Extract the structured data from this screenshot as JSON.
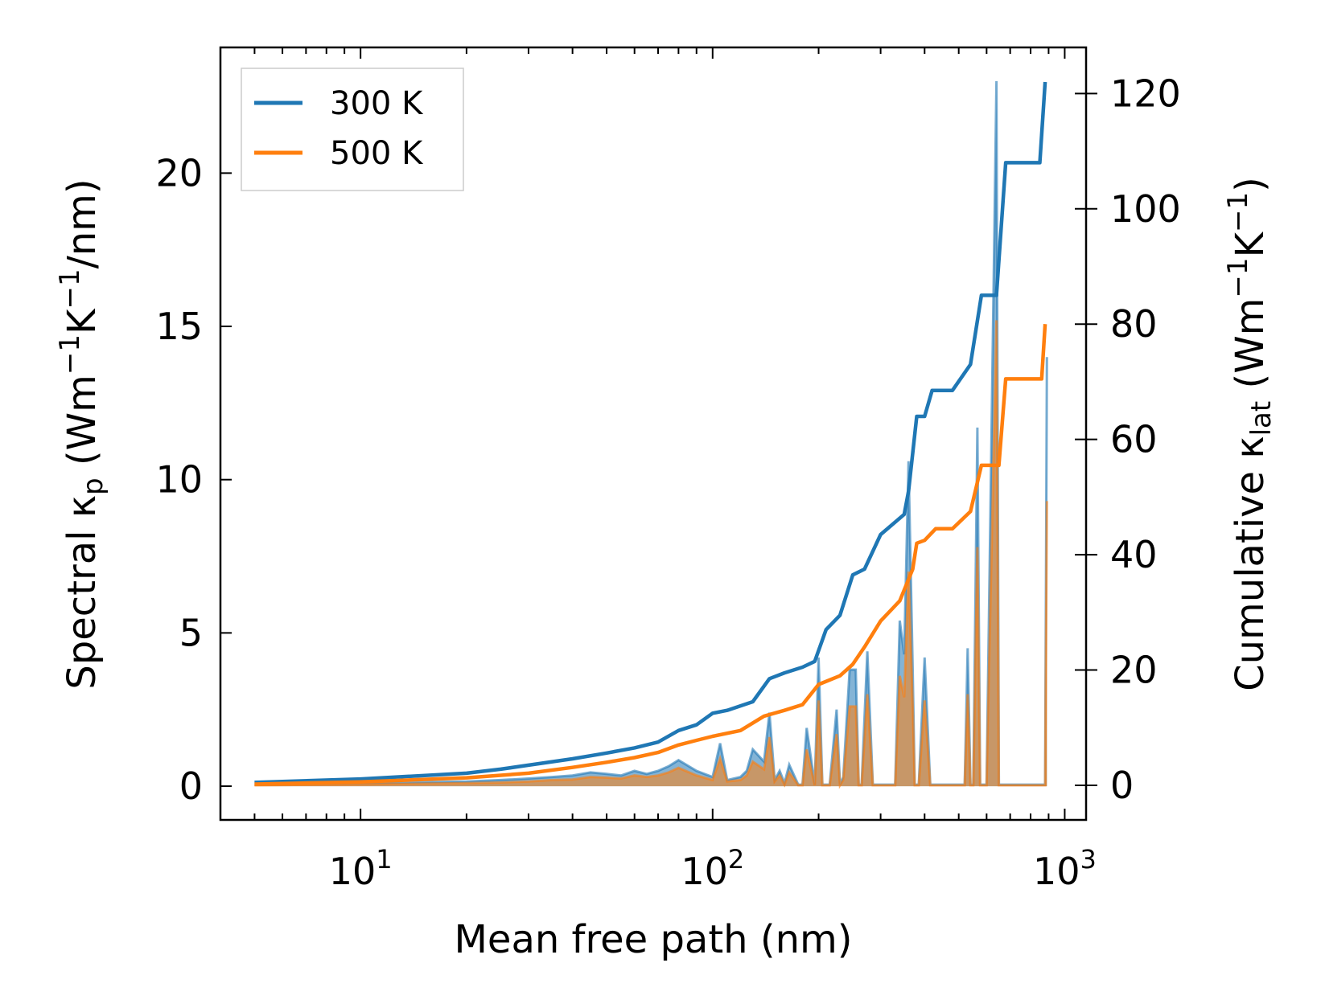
{
  "chart_data": {
    "type": "line",
    "title": "",
    "xlabel": "Mean free path (nm)",
    "xscale": "log",
    "xlim": [
      4,
      1150
    ],
    "xticks": [
      {
        "value": 10,
        "base": "10",
        "exp": "1"
      },
      {
        "value": 100,
        "base": "10",
        "exp": "2"
      },
      {
        "value": 1000,
        "base": "10",
        "exp": "3"
      }
    ],
    "y_left": {
      "label_parts": {
        "pre": "Spectral κ",
        "sub": "p",
        "mid": " (Wm",
        "sup1": "−1",
        "mid2": "K",
        "sup2": "−1",
        "post": "/nm)"
      },
      "lim": [
        -1.1,
        24.1
      ],
      "ticks": [
        "0",
        "5",
        "10",
        "15",
        "20"
      ]
    },
    "y_right": {
      "label_parts": {
        "pre": "Cumulative κ",
        "sub": "lat",
        "mid": " (Wm",
        "sup1": "−1",
        "mid2": "K",
        "sup2": "−1",
        "post": ")"
      },
      "lim": [
        -6,
        128
      ],
      "ticks": [
        "0",
        "20",
        "40",
        "60",
        "80",
        "100",
        "120"
      ]
    },
    "legend": {
      "location": "top-left",
      "entries": [
        {
          "label": "300 K",
          "color": "#1f77b4"
        },
        {
          "label": "500 K",
          "color": "#ff7f0e"
        }
      ]
    },
    "series": [
      {
        "name": "300 K",
        "color": "#1f77b4",
        "axis": "right",
        "kind": "cumulative",
        "x": [
          5,
          10,
          20,
          25,
          30,
          40,
          50,
          60,
          70,
          80,
          90,
          100,
          110,
          130,
          145,
          160,
          180,
          195,
          210,
          230,
          250,
          270,
          300,
          350,
          360,
          380,
          400,
          420,
          480,
          540,
          580,
          640,
          680,
          700,
          850,
          880
        ],
        "y": [
          0.5,
          1.1,
          2.1,
          2.8,
          3.5,
          4.6,
          5.6,
          6.5,
          7.5,
          9.5,
          10.5,
          12.5,
          13,
          14.5,
          18.5,
          19.5,
          20.5,
          21.5,
          27,
          29.5,
          36.5,
          37.5,
          43.5,
          47,
          51,
          64,
          64,
          68.5,
          68.5,
          73,
          85,
          85,
          108,
          108,
          108,
          122
        ]
      },
      {
        "name": "500 K",
        "color": "#ff7f0e",
        "axis": "right",
        "kind": "cumulative",
        "x": [
          5,
          10,
          20,
          30,
          40,
          50,
          60,
          70,
          80,
          90,
          100,
          120,
          140,
          160,
          180,
          200,
          230,
          250,
          270,
          300,
          340,
          370,
          380,
          400,
          430,
          480,
          540,
          580,
          650,
          680,
          700,
          860,
          880
        ],
        "y": [
          0.2,
          0.6,
          1.3,
          2.1,
          3.1,
          4,
          4.8,
          5.7,
          7,
          7.8,
          8.5,
          9.5,
          12,
          13,
          14,
          17.5,
          19,
          21,
          24,
          28.5,
          32,
          37.5,
          42,
          42.5,
          44.5,
          44.5,
          47.5,
          55.5,
          55.5,
          70.5,
          70.5,
          70.5,
          80
        ]
      },
      {
        "name": "300 K",
        "color": "#1f77b4",
        "axis": "left",
        "kind": "spectral",
        "x": [
          5,
          10,
          20,
          25,
          30,
          35,
          40,
          45,
          50,
          55,
          60,
          65,
          70,
          75,
          80,
          90,
          100,
          105,
          110,
          120,
          125,
          130,
          140,
          145,
          150,
          155,
          160,
          165,
          175,
          180,
          185,
          195,
          200,
          205,
          215,
          225,
          230,
          235,
          245,
          255,
          260,
          265,
          275,
          285,
          290,
          300,
          330,
          340,
          350,
          360,
          370,
          375,
          385,
          400,
          415,
          425,
          440,
          470,
          520,
          530,
          540,
          550,
          565,
          575,
          585,
          600,
          640,
          650,
          660,
          680,
          880,
          890
        ],
        "y": [
          0.05,
          0.1,
          0.15,
          0.2,
          0.25,
          0.3,
          0.35,
          0.45,
          0.4,
          0.35,
          0.5,
          0.4,
          0.5,
          0.65,
          0.85,
          0.5,
          0.3,
          1.4,
          0.2,
          0.3,
          0.5,
          1.2,
          0.8,
          2.4,
          0.2,
          0.5,
          0.1,
          0.7,
          0.05,
          0.05,
          1.9,
          0.05,
          4.2,
          0.05,
          0.05,
          2.5,
          0.05,
          0.3,
          3.8,
          3.8,
          0.05,
          0.05,
          4.4,
          0.05,
          0.05,
          0.05,
          0.05,
          5.4,
          4.3,
          10.6,
          3.8,
          0.05,
          0.05,
          4.2,
          0.05,
          0.05,
          0.05,
          0.05,
          0.05,
          4.5,
          0.05,
          0.05,
          11.7,
          0.05,
          0.05,
          0.05,
          23,
          0.05,
          0.05,
          0.05,
          0.05,
          14
        ]
      },
      {
        "name": "500 K",
        "color": "#ff7f0e",
        "axis": "left",
        "kind": "spectral",
        "x": [
          5,
          10,
          20,
          25,
          30,
          35,
          40,
          45,
          50,
          55,
          60,
          65,
          70,
          75,
          80,
          90,
          100,
          105,
          110,
          120,
          125,
          130,
          140,
          145,
          150,
          155,
          160,
          165,
          175,
          180,
          185,
          195,
          200,
          205,
          215,
          225,
          230,
          235,
          245,
          255,
          260,
          265,
          275,
          285,
          290,
          300,
          330,
          340,
          350,
          360,
          370,
          375,
          385,
          400,
          415,
          425,
          440,
          470,
          520,
          530,
          540,
          550,
          565,
          575,
          585,
          600,
          640,
          650,
          660,
          680,
          880,
          890
        ],
        "y": [
          0.03,
          0.06,
          0.1,
          0.12,
          0.15,
          0.2,
          0.22,
          0.3,
          0.28,
          0.25,
          0.35,
          0.3,
          0.35,
          0.45,
          0.6,
          0.35,
          0.2,
          0.9,
          0.15,
          0.2,
          0.35,
          0.8,
          0.55,
          1.6,
          0.15,
          0.35,
          0.05,
          0.45,
          0.03,
          0.03,
          1.2,
          0.03,
          2.8,
          0.03,
          0.03,
          1.7,
          0.03,
          0.2,
          2.6,
          2.6,
          0.03,
          0.03,
          3.0,
          0.03,
          0.03,
          0.03,
          0.03,
          3.6,
          2.9,
          7.0,
          2.6,
          0.03,
          0.03,
          2.8,
          0.03,
          0.03,
          0.03,
          0.03,
          0.03,
          3.0,
          0.03,
          0.03,
          7.8,
          0.03,
          0.03,
          0.03,
          15.2,
          0.03,
          0.03,
          0.03,
          0.03,
          9.3
        ]
      }
    ]
  }
}
